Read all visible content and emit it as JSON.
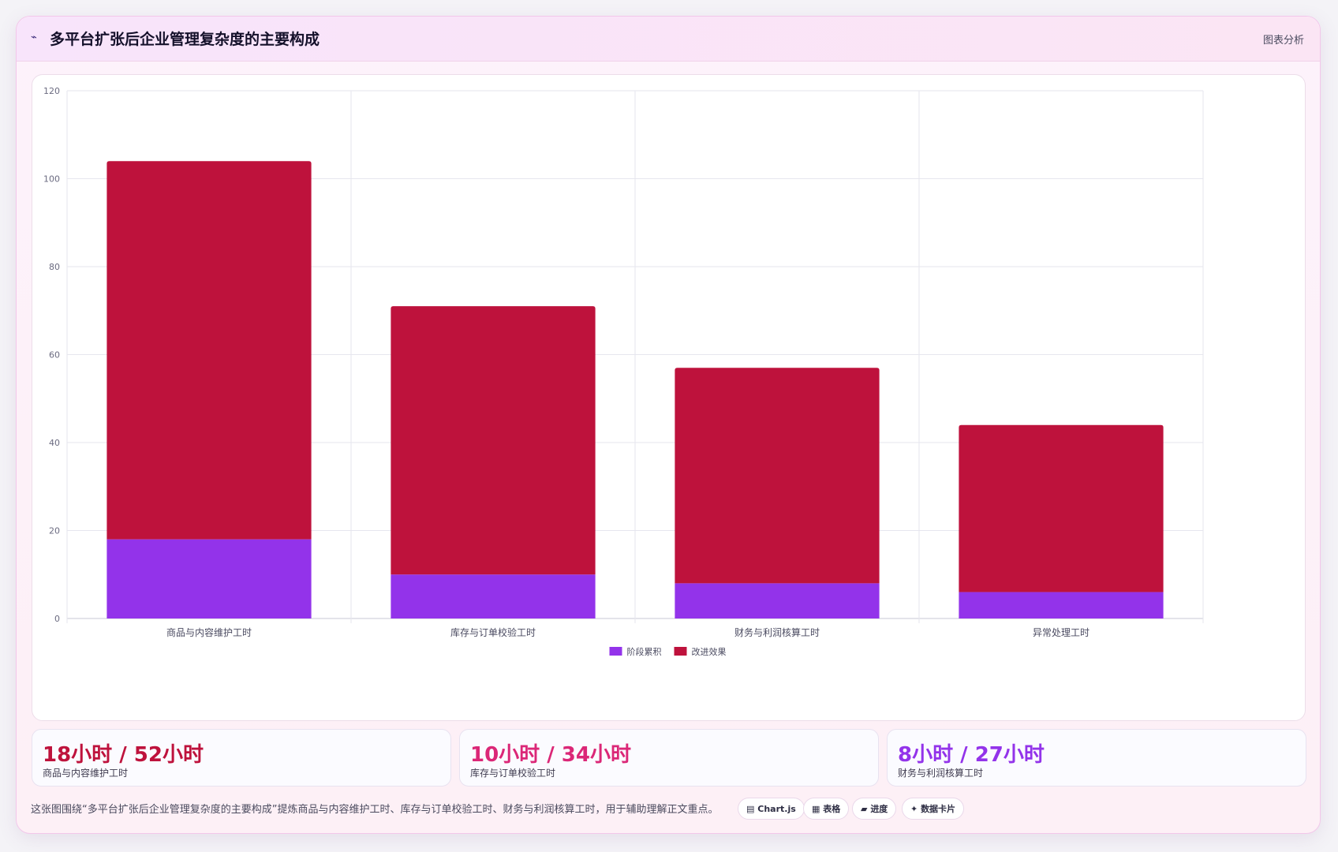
{
  "header": {
    "icon": "chart-line-icon",
    "title": "多平台扩张后企业管理复杂度的主要构成",
    "badge": "图表分析"
  },
  "chart_data": {
    "type": "bar",
    "stacked": true,
    "categories": [
      "商品与内容维护工时",
      "库存与订单校验工时",
      "财务与利润核算工时",
      "异常处理工时"
    ],
    "series": [
      {
        "name": "阶段累积",
        "color": "#9333ea",
        "values": [
          18,
          10,
          8,
          6
        ]
      },
      {
        "name": "改进效果",
        "color": "#be123c",
        "values": [
          86,
          61,
          49,
          38
        ]
      }
    ],
    "ylim": [
      0,
      120
    ],
    "yticks": [
      0,
      20,
      40,
      60,
      80,
      100,
      120
    ],
    "grid": true,
    "legend": "bottom"
  },
  "stats": [
    {
      "value": "18小时 / 52小时",
      "label": "商品与内容维护工时",
      "color": "#be123c"
    },
    {
      "value": "10小时 / 34小时",
      "label": "库存与订单校验工时",
      "color": "#db2777"
    },
    {
      "value": "8小时 / 27小时",
      "label": "财务与利润核算工时",
      "color": "#9333ea"
    }
  ],
  "caption": "这张图围绕“多平台扩张后企业管理复杂度的主要构成”提炼商品与内容维护工时、库存与订单校验工时、财务与利润核算工时，用于辅助理解正文重点。",
  "chips": [
    {
      "icon": "chart-icon",
      "glyph": "▤",
      "label": "Chart.js"
    },
    {
      "icon": "table-icon",
      "glyph": "▦",
      "label": "表格"
    },
    {
      "icon": "progress-icon",
      "glyph": "▰",
      "label": "进度"
    },
    {
      "icon": "sparkle-icon",
      "glyph": "✦",
      "label": "数据卡片"
    }
  ]
}
